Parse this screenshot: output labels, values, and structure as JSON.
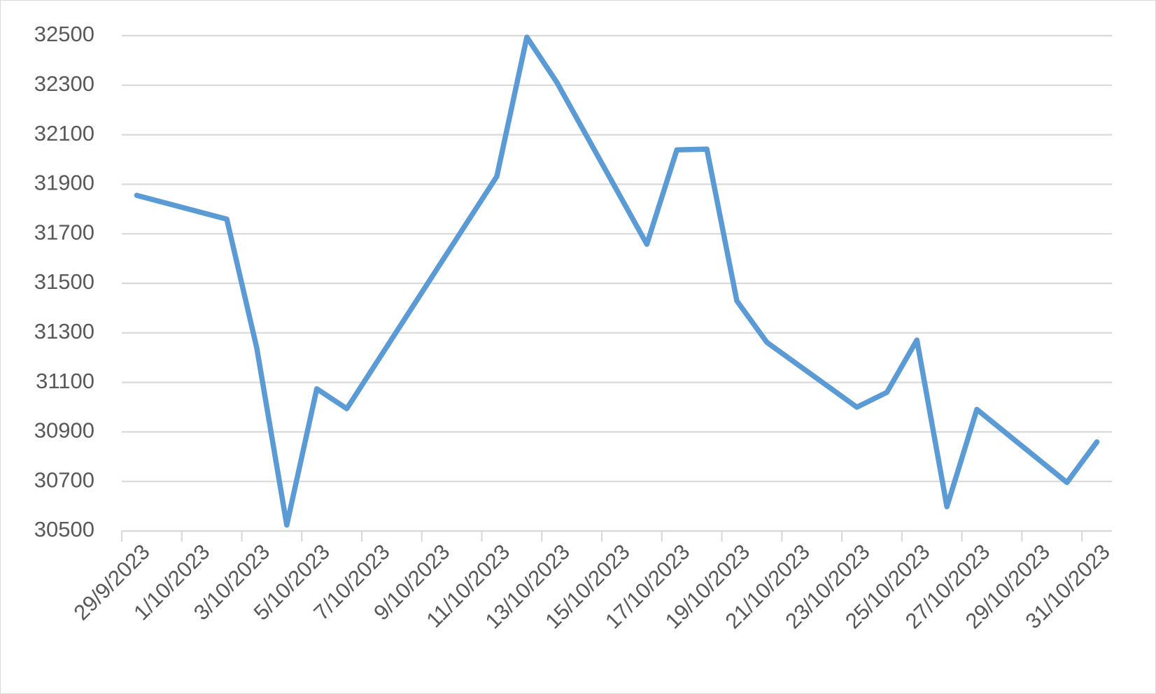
{
  "chart_data": {
    "type": "line",
    "x": [
      "29/9/2023",
      "2/10/2023",
      "3/10/2023",
      "4/10/2023",
      "5/10/2023",
      "6/10/2023",
      "11/10/2023",
      "12/10/2023",
      "13/10/2023",
      "16/10/2023",
      "17/10/2023",
      "18/10/2023",
      "19/10/2023",
      "20/10/2023",
      "23/10/2023",
      "24/10/2023",
      "25/10/2023",
      "26/10/2023",
      "27/10/2023",
      "30/10/2023",
      "31/10/2023"
    ],
    "series": [
      {
        "color": "#5b9bd5",
        "values": [
          31855,
          31759,
          31238,
          30524,
          31074,
          30994,
          31932,
          32494,
          32312,
          31658,
          32039,
          32042,
          31429,
          31262,
          31000,
          31060,
          31271,
          30598,
          30991,
          30696,
          30860
        ]
      }
    ],
    "xticks": [
      "29/9/2023",
      "1/10/2023",
      "3/10/2023",
      "5/10/2023",
      "7/10/2023",
      "9/10/2023",
      "11/10/2023",
      "13/10/2023",
      "15/10/2023",
      "17/10/2023",
      "19/10/2023",
      "21/10/2023",
      "23/10/2023",
      "25/10/2023",
      "27/10/2023",
      "29/10/2023",
      "31/10/2023"
    ],
    "ylim": [
      30500,
      32500
    ],
    "yticks": [
      30500,
      30700,
      30900,
      31100,
      31300,
      31500,
      31700,
      31900,
      32100,
      32300,
      32500
    ],
    "grid": true
  }
}
